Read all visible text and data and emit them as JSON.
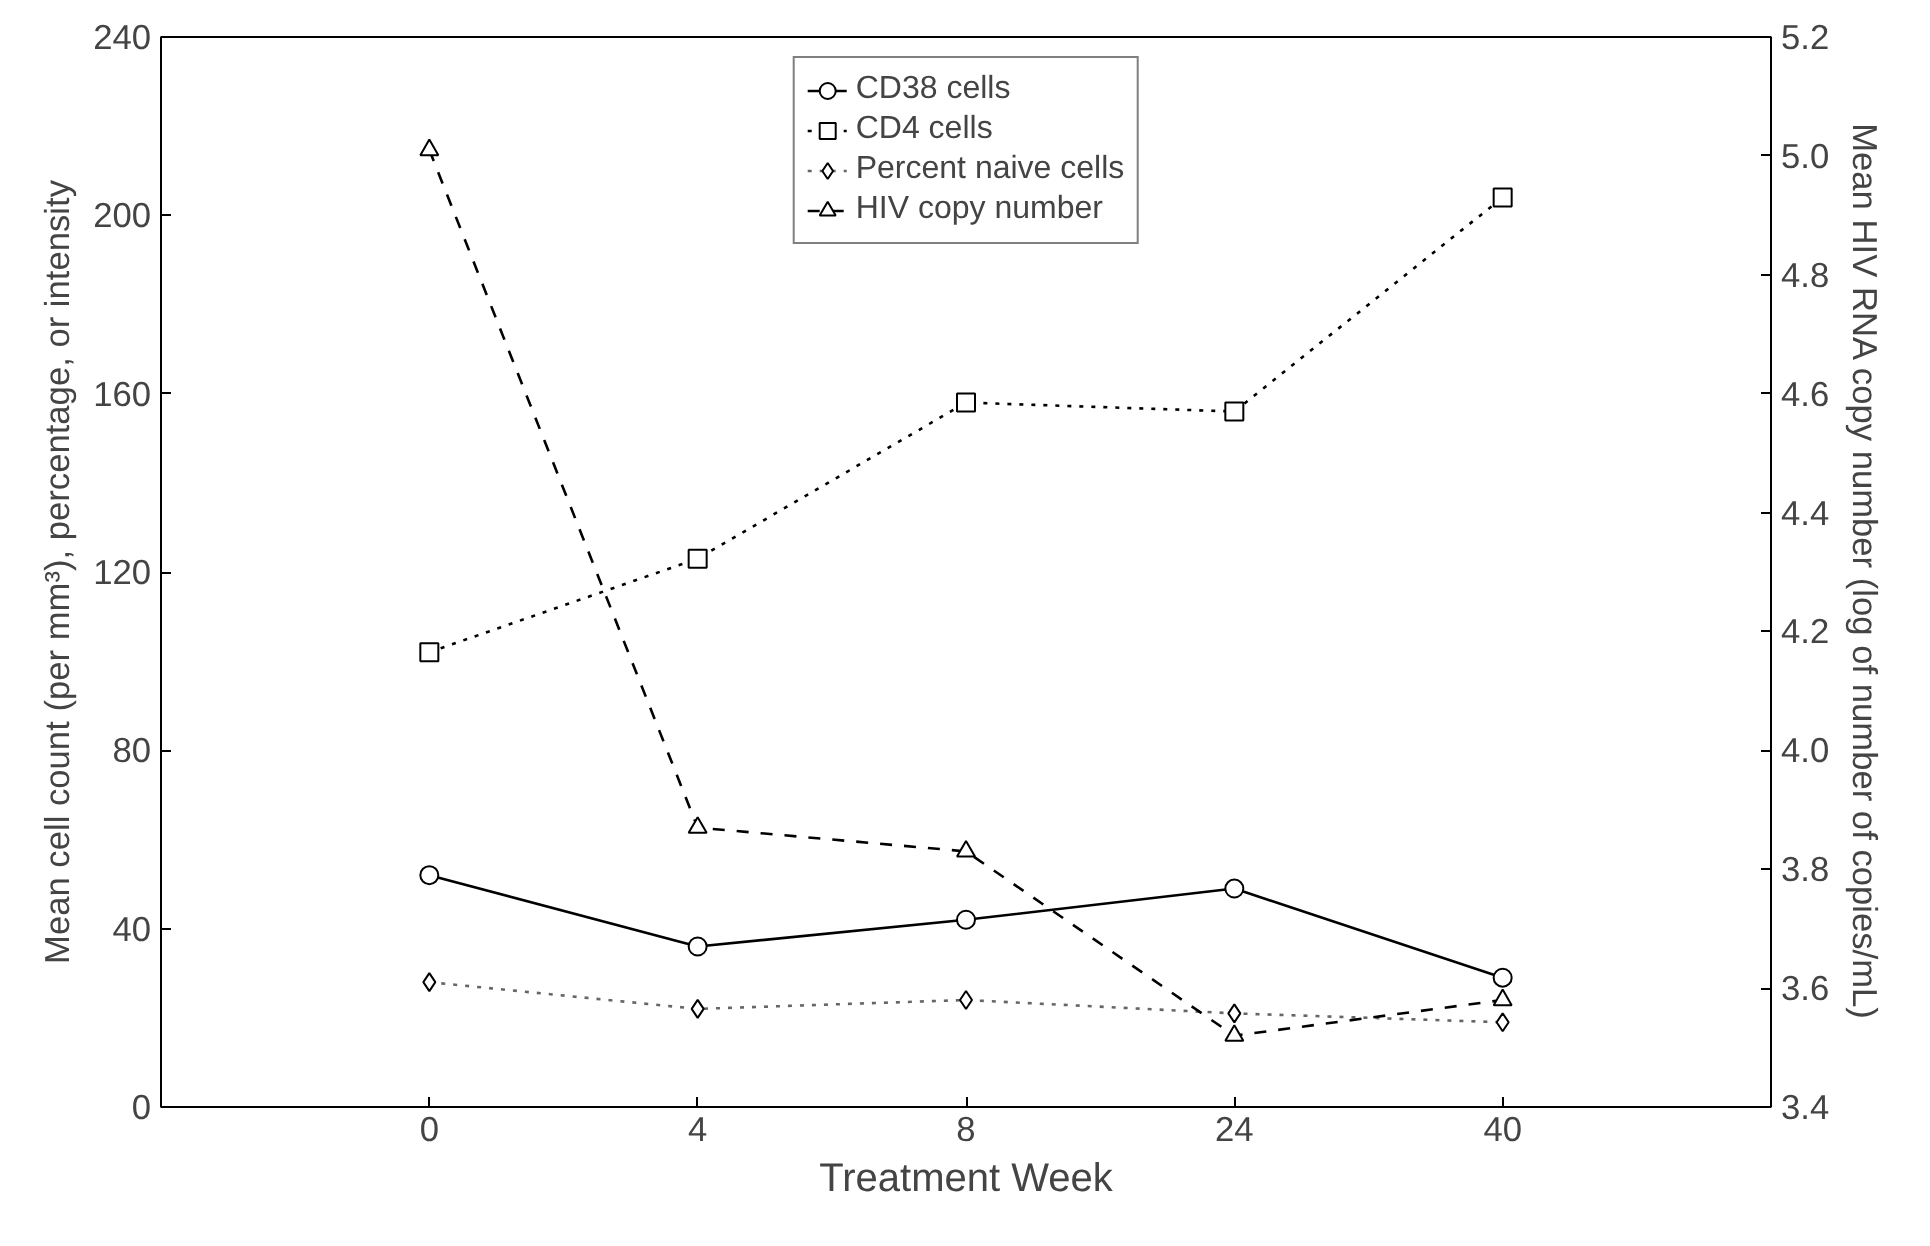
{
  "chart_data": {
    "type": "line",
    "xlabel": "Treatment Week",
    "ylabel": "Mean cell count (per mm³), percentage, or intensity",
    "y2label": "Mean HIV RNA copy number (log of number of copies/mL)",
    "categories": [
      "0",
      "4",
      "8",
      "24",
      "40"
    ],
    "ylim": [
      0,
      240
    ],
    "yticks": [
      0,
      40,
      80,
      120,
      160,
      200,
      240
    ],
    "y2lim": [
      3.4,
      5.2
    ],
    "y2ticks": [
      {
        "value": 3.4,
        "label": "3.4"
      },
      {
        "value": 3.6,
        "label": "3.6"
      },
      {
        "value": 3.8,
        "label": "3.8"
      },
      {
        "value": 4.0,
        "label": "4.0"
      },
      {
        "value": 4.2,
        "label": "4.2"
      },
      {
        "value": 4.4,
        "label": "4.4"
      },
      {
        "value": 4.6,
        "label": "4.6"
      },
      {
        "value": 4.8,
        "label": "4.8"
      },
      {
        "value": 5.0,
        "label": "5.0"
      },
      {
        "value": 5.2,
        "label": "5.2"
      }
    ],
    "grid": false,
    "legend": "top",
    "series": [
      {
        "name": "CD38 cells",
        "color": "#000000",
        "marker": "circle",
        "line_style": "solid",
        "values": [
          52,
          36,
          42,
          49,
          29
        ]
      },
      {
        "name": "CD4 cells",
        "color": "#000000",
        "marker": "square",
        "line_style": "dotted",
        "values": [
          102,
          123,
          158,
          156,
          204
        ]
      },
      {
        "name": "Percent naive cells",
        "color": "#666666",
        "marker": "diamond",
        "line_style": "dotted",
        "values": [
          28,
          22,
          24,
          21,
          19
        ]
      },
      {
        "name": "HIV copy number",
        "color": "#000000",
        "marker": "triangle",
        "line_style": "dashed",
        "axis": "y2",
        "values": [
          5.01,
          3.87,
          3.83,
          3.52,
          3.58
        ]
      }
    ]
  }
}
